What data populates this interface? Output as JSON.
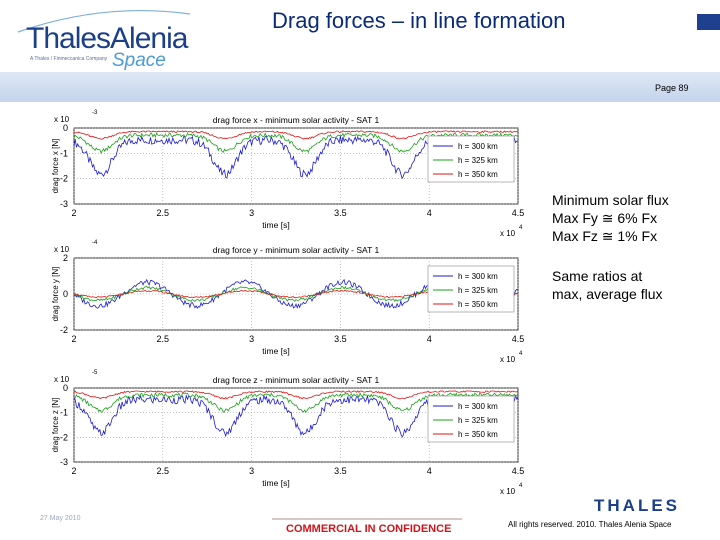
{
  "header": {
    "logo_main": "ThalesAlenia",
    "logo_space": "Space",
    "logo_sub": "A Thales / Finmeccanica Company",
    "title": "Drag forces – in line formation",
    "page": "Page 89"
  },
  "notes": {
    "line1": "Minimum solar flux",
    "line2": "Max Fy ≅ 6% Fx",
    "line3": "Max Fz ≅ 1% Fx",
    "line4": "Same ratios at",
    "line5": "max, average flux"
  },
  "footer": {
    "date": "27 May 2010",
    "confidential": "COMMERCIAL IN CONFIDENCE",
    "rights": "All rights reserved. 2010. Thales Alenia Space",
    "brand": "THALES"
  },
  "colors": {
    "h300": "#1c1cd6",
    "h325": "#1aa11a",
    "h350": "#e01515",
    "title_blue": "#0a2a7a",
    "logo_blue": "#1b3f8b"
  },
  "chart_data": [
    {
      "type": "line",
      "title": "drag force x - minimum solar activity - SAT 1",
      "xlabel": "time [s]",
      "ylabel": "drag force x [N]",
      "x_multiplier": "x 10",
      "x_exponent": "4",
      "y_multiplier": "x 10",
      "y_exponent": "-3",
      "xlim": [
        2,
        4.5
      ],
      "ylim": [
        -3,
        0
      ],
      "xticks": [
        "2",
        "2.5",
        "3",
        "3.5",
        "4",
        "4.5"
      ],
      "yticks": [
        "0",
        "-1",
        "-2",
        "-3"
      ],
      "grid": true,
      "legend_position": "right",
      "series": [
        {
          "name": "h = 300 km",
          "center": -1.15,
          "amplitude": 0.75
        },
        {
          "name": "h = 325 km",
          "center": -0.6,
          "amplitude": 0.35
        },
        {
          "name": "h = 350 km",
          "center": -0.28,
          "amplitude": 0.15
        }
      ]
    },
    {
      "type": "line",
      "title": "drag force y - minimum solar activity - SAT 1",
      "xlabel": "time [s]",
      "ylabel": "drag force y [N]",
      "x_multiplier": "x 10",
      "x_exponent": "4",
      "y_multiplier": "x 10",
      "y_exponent": "-4",
      "xlim": [
        2,
        4.5
      ],
      "ylim": [
        -2,
        2
      ],
      "xticks": [
        "2",
        "2.5",
        "3",
        "3.5",
        "4",
        "4.5"
      ],
      "yticks": [
        "2",
        "0",
        "-2"
      ],
      "grid": true,
      "legend_position": "right",
      "series": [
        {
          "name": "h = 300 km",
          "center": 0,
          "amplitude": 0.65
        },
        {
          "name": "h = 325 km",
          "center": 0,
          "amplitude": 0.35
        },
        {
          "name": "h = 350 km",
          "center": 0,
          "amplitude": 0.18
        }
      ]
    },
    {
      "type": "line",
      "title": "drag force z - minimum solar activity - SAT 1",
      "xlabel": "time [s]",
      "ylabel": "drag force z [N]",
      "x_multiplier": "x 10",
      "x_exponent": "4",
      "y_multiplier": "x 10",
      "y_exponent": "-5",
      "xlim": [
        2,
        4.5
      ],
      "ylim": [
        -3,
        0
      ],
      "xticks": [
        "2",
        "2.5",
        "3",
        "3.5",
        "4",
        "4.5"
      ],
      "yticks": [
        "0",
        "-1",
        "-2",
        "-3"
      ],
      "grid": true,
      "legend_position": "right",
      "series": [
        {
          "name": "h = 300 km",
          "center": -1.15,
          "amplitude": 0.75
        },
        {
          "name": "h = 325 km",
          "center": -0.6,
          "amplitude": 0.35
        },
        {
          "name": "h = 350 km",
          "center": -0.28,
          "amplitude": 0.15
        }
      ]
    }
  ]
}
